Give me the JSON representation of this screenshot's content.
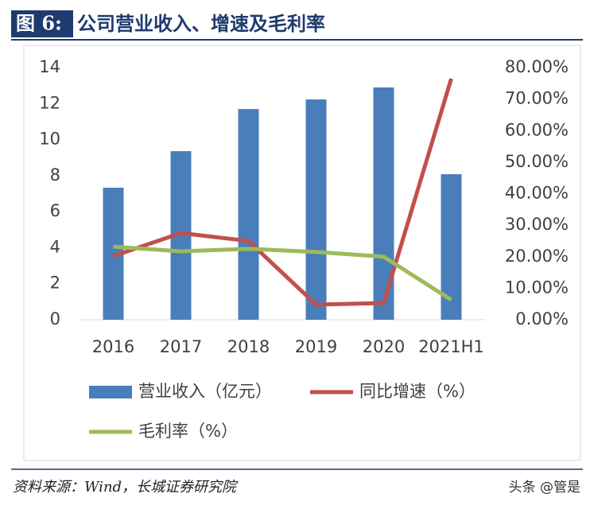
{
  "chart_data": {
    "type": "bar",
    "figure_label": "图 6:",
    "title": "公司营业收入、增速及毛利率",
    "categories": [
      "2016",
      "2017",
      "2018",
      "2019",
      "2020",
      "2021H1"
    ],
    "series": [
      {
        "name": "营业收入（亿元）",
        "type": "bar",
        "color": "#4a7ebb",
        "values": [
          7.33,
          9.36,
          11.7,
          12.23,
          12.9,
          8.08
        ]
      },
      {
        "name": "同比增速（%）",
        "type": "line",
        "axis": "y2",
        "color": "#c0504d",
        "values": [
          20.2,
          27.5,
          25,
          4.8,
          5.3,
          76.5
        ]
      },
      {
        "name": "毛利率（%）",
        "type": "line",
        "axis": "y2",
        "color": "#9bbb59",
        "values": [
          23.2,
          21.7,
          22.5,
          21.5,
          20,
          6.3
        ]
      }
    ],
    "ylim": [
      0,
      14
    ],
    "yticks": [
      0,
      2,
      4,
      6,
      8,
      10,
      12,
      14
    ],
    "y2lim": [
      0,
      80
    ],
    "y2ticks": [
      {
        "value": 0,
        "label": "0.00%"
      },
      {
        "value": 10,
        "label": "10.00%"
      },
      {
        "value": 20,
        "label": "20.00%"
      },
      {
        "value": 30,
        "label": "30.00%"
      },
      {
        "value": 40,
        "label": "40.00%"
      },
      {
        "value": 50,
        "label": "50.00%"
      },
      {
        "value": 60,
        "label": "60.00%"
      },
      {
        "value": 70,
        "label": "70.00%"
      },
      {
        "value": 80,
        "label": "80.00%"
      }
    ],
    "source": "资料来源：Wind，长城证券研究院",
    "watermark": "头条 @管是"
  }
}
